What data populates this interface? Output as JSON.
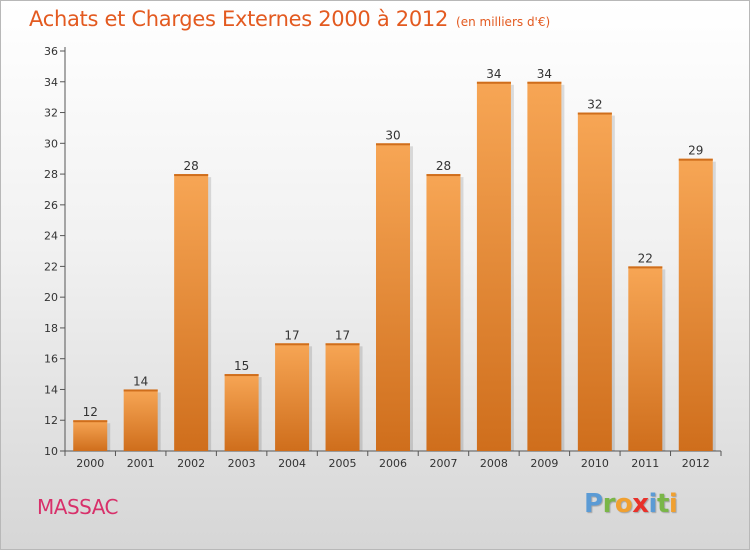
{
  "chart_data": {
    "type": "bar",
    "title": "Achats et Charges Externes 2000 à 2012",
    "subtitle": "(en milliers d'€)",
    "categories": [
      "2000",
      "2001",
      "2002",
      "2003",
      "2004",
      "2005",
      "2006",
      "2007",
      "2008",
      "2009",
      "2010",
      "2011",
      "2012"
    ],
    "values": [
      12,
      14,
      28,
      15,
      17,
      17,
      30,
      28,
      34,
      34,
      32,
      22,
      29
    ],
    "data_labels": [
      "12",
      "14",
      "28",
      "15",
      "17",
      "17",
      "30",
      "28",
      "34",
      "34",
      "32",
      "22",
      "29"
    ],
    "ylim": [
      10,
      36
    ],
    "y_ticks": [
      10,
      12,
      14,
      16,
      18,
      20,
      22,
      24,
      26,
      28,
      30,
      32,
      34,
      36
    ],
    "grid": false,
    "bar_colors": {
      "light": "#f7a655",
      "dark": "#cf6e1c"
    },
    "title_color": "#e35a20"
  },
  "footer": {
    "town": "MASSAC",
    "town_color": "#d8306a",
    "logo_letters": [
      {
        "ch": "P",
        "color": "#5b9bd5"
      },
      {
        "ch": "r",
        "color": "#7ab648"
      },
      {
        "ch": "o",
        "color": "#f0a030"
      },
      {
        "ch": "x",
        "color": "#e8312a"
      },
      {
        "ch": "i",
        "color": "#5b9bd5"
      },
      {
        "ch": "t",
        "color": "#7ab648"
      },
      {
        "ch": "i",
        "color": "#f0a030"
      }
    ]
  }
}
